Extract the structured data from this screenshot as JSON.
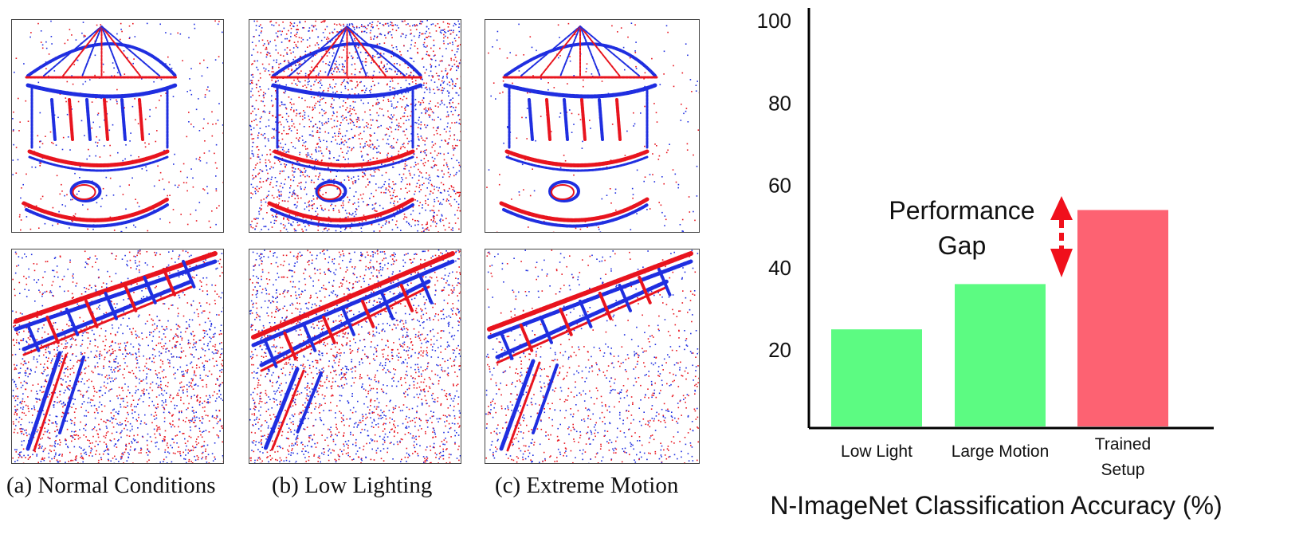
{
  "figure": {
    "captions": [
      "(a) Normal Conditions",
      "(b) Low Lighting",
      "(c) Extreme Motion"
    ],
    "colors": {
      "positive_event": "#e8141e",
      "negative_event": "#1f2ee0"
    }
  },
  "chart_data": {
    "type": "bar",
    "categories": [
      [
        "Low Light"
      ],
      [
        "Large Motion"
      ],
      [
        "Trained",
        "Setup"
      ]
    ],
    "values": [
      25,
      36,
      54
    ],
    "colors": [
      "#5cfb82",
      "#5cfb82",
      "#fd6272"
    ],
    "ylim": [
      0,
      100
    ],
    "yticks": [
      20,
      40,
      60,
      80,
      100
    ],
    "xlabel": "N-ImageNet Classification Accuracy (%)",
    "ylabel": "",
    "title": "",
    "annotation": {
      "lines": [
        "Performance",
        "Gap"
      ],
      "arrow_color": "#f0101c"
    },
    "grid": false,
    "legend": "none"
  }
}
